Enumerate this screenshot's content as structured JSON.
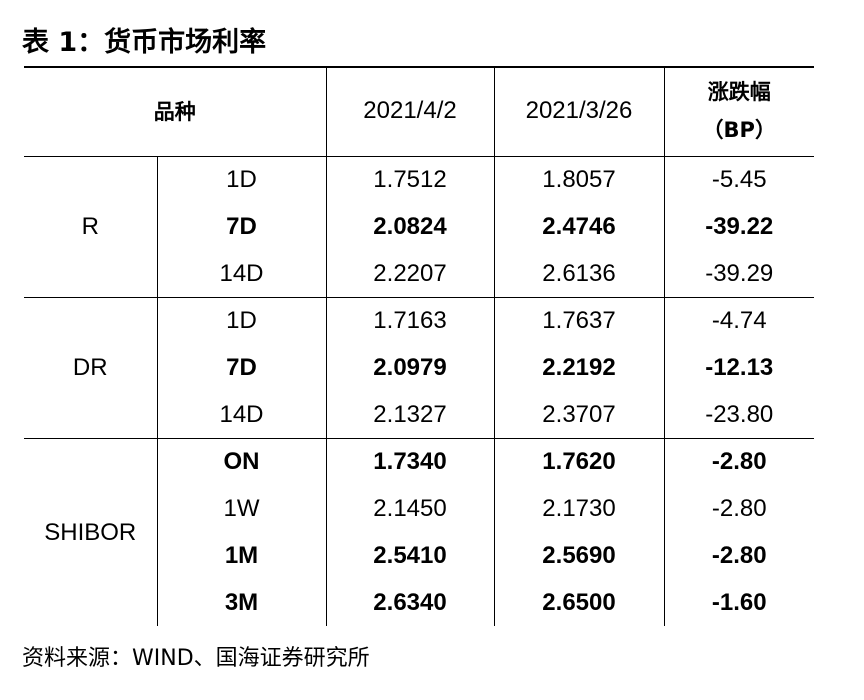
{
  "title": "表 1：货币市场利率",
  "header": {
    "col_product": "品种",
    "col_date1": "2021/4/2",
    "col_date2": "2021/3/26",
    "col_change_line1": "涨跌幅",
    "col_change_line2": "（BP）"
  },
  "groups": [
    {
      "name": "R",
      "rows": [
        {
          "term": "1D",
          "v1": "1.7512",
          "v2": "1.8057",
          "chg": "-5.45",
          "bold": false
        },
        {
          "term": "7D",
          "v1": "2.0824",
          "v2": "2.4746",
          "chg": "-39.22",
          "bold": true
        },
        {
          "term": "14D",
          "v1": "2.2207",
          "v2": "2.6136",
          "chg": "-39.29",
          "bold": false
        }
      ]
    },
    {
      "name": "DR",
      "rows": [
        {
          "term": "1D",
          "v1": "1.7163",
          "v2": "1.7637",
          "chg": "-4.74",
          "bold": false
        },
        {
          "term": "7D",
          "v1": "2.0979",
          "v2": "2.2192",
          "chg": "-12.13",
          "bold": true
        },
        {
          "term": "14D",
          "v1": "2.1327",
          "v2": "2.3707",
          "chg": "-23.80",
          "bold": false
        }
      ]
    },
    {
      "name": "SHIBOR",
      "rows": [
        {
          "term": "ON",
          "v1": "1.7340",
          "v2": "1.7620",
          "chg": "-2.80",
          "bold": true
        },
        {
          "term": "1W",
          "v1": "2.1450",
          "v2": "2.1730",
          "chg": "-2.80",
          "bold": false
        },
        {
          "term": "1M",
          "v1": "2.5410",
          "v2": "2.5690",
          "chg": "-2.80",
          "bold": true
        },
        {
          "term": "3M",
          "v1": "2.6340",
          "v2": "2.6500",
          "chg": "-1.60",
          "bold": true
        }
      ]
    }
  ],
  "source": "资料来源：WIND、国海证券研究所"
}
